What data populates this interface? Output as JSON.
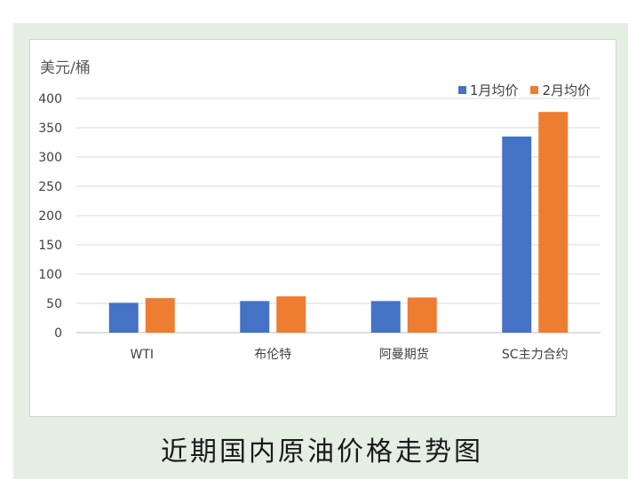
{
  "chart_data": {
    "type": "bar",
    "title": "近期国内原油价格走势图",
    "ylabel": "美元/桶",
    "xlabel": "",
    "ylim": [
      0,
      400
    ],
    "yticks": [
      0,
      50,
      100,
      150,
      200,
      250,
      300,
      350,
      400
    ],
    "grid": true,
    "legend_position": "top-right",
    "categories": [
      "WTI",
      "布伦特",
      "阿曼期货",
      "SC主力合约"
    ],
    "series": [
      {
        "name": "1月均价",
        "color": "#4472c4",
        "values": [
          51,
          54,
          54,
          335
        ]
      },
      {
        "name": "2月均价",
        "color": "#ed7d31",
        "values": [
          59,
          62,
          60,
          377
        ]
      }
    ]
  }
}
